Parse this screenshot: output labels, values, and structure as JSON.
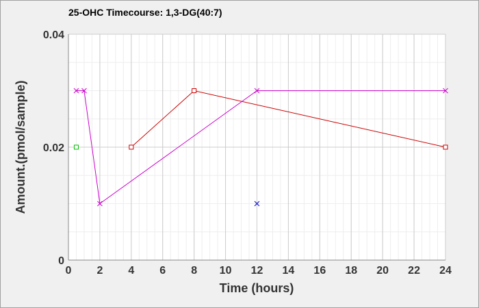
{
  "chart_data": {
    "type": "line",
    "title": "25-OHC Timecourse: 1,3-DG(40:7)",
    "xlabel": "Time (hours)",
    "ylabel": "Amount.(pmol/sample)",
    "xlim": [
      0,
      24
    ],
    "ylim": [
      0,
      0.04
    ],
    "x_ticks": [
      "0",
      "2",
      "4",
      "6",
      "8",
      "10",
      "12",
      "14",
      "16",
      "18",
      "20",
      "22",
      "24"
    ],
    "y_ticks": [
      "0",
      "0.02",
      "0.04"
    ],
    "grid": true,
    "series": [
      {
        "color": "#cc0000",
        "marker": "square",
        "points": [
          [
            4,
            0.02
          ],
          [
            8,
            0.03
          ],
          [
            24,
            0.02
          ]
        ]
      },
      {
        "color": "#cc00cc",
        "marker": "x",
        "points": [
          [
            0.5,
            0.03
          ],
          [
            1,
            0.03
          ],
          [
            2,
            0.01
          ],
          [
            12,
            0.03
          ],
          [
            24,
            0.03
          ]
        ]
      },
      {
        "color": "#00bb00",
        "marker": "square",
        "points": [
          [
            0.5,
            0.02
          ]
        ]
      },
      {
        "color": "#0000cc",
        "marker": "x",
        "points": [
          [
            12,
            0.01
          ]
        ]
      }
    ]
  }
}
